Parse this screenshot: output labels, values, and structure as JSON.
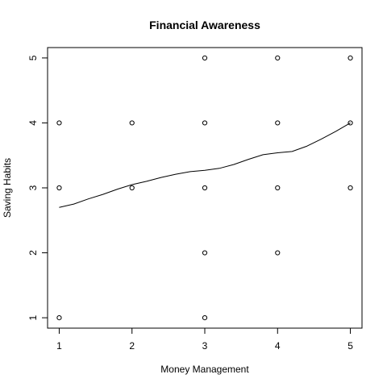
{
  "chart_data": {
    "type": "scatter",
    "title": "Financial Awareness",
    "xlabel": "Money Management",
    "ylabel": "Saving Habits",
    "xlim": [
      0.84,
      5.16
    ],
    "ylim": [
      0.84,
      5.16
    ],
    "xticks": [
      1,
      2,
      3,
      4,
      5
    ],
    "yticks": [
      1,
      2,
      3,
      4,
      5
    ],
    "grid": false,
    "legend": "none",
    "points": [
      {
        "x": 1,
        "y": 1
      },
      {
        "x": 1,
        "y": 3
      },
      {
        "x": 1,
        "y": 4
      },
      {
        "x": 2,
        "y": 3
      },
      {
        "x": 2,
        "y": 4
      },
      {
        "x": 3,
        "y": 1
      },
      {
        "x": 3,
        "y": 2
      },
      {
        "x": 3,
        "y": 3
      },
      {
        "x": 3,
        "y": 4
      },
      {
        "x": 3,
        "y": 5
      },
      {
        "x": 4,
        "y": 2
      },
      {
        "x": 4,
        "y": 3
      },
      {
        "x": 4,
        "y": 4
      },
      {
        "x": 4,
        "y": 5
      },
      {
        "x": 5,
        "y": 3
      },
      {
        "x": 5,
        "y": 4
      },
      {
        "x": 5,
        "y": 5
      }
    ],
    "smooth_line": {
      "x": [
        1,
        1.2,
        1.4,
        1.6,
        1.8,
        2,
        2.2,
        2.4,
        2.6,
        2.8,
        3,
        3.2,
        3.4,
        3.6,
        3.8,
        4,
        4.2,
        4.4,
        4.6,
        4.8,
        5
      ],
      "y": [
        2.7,
        2.75,
        2.83,
        2.9,
        2.98,
        3.05,
        3.1,
        3.16,
        3.21,
        3.25,
        3.27,
        3.3,
        3.36,
        3.44,
        3.51,
        3.54,
        3.56,
        3.64,
        3.75,
        3.87,
        4.0
      ]
    }
  }
}
